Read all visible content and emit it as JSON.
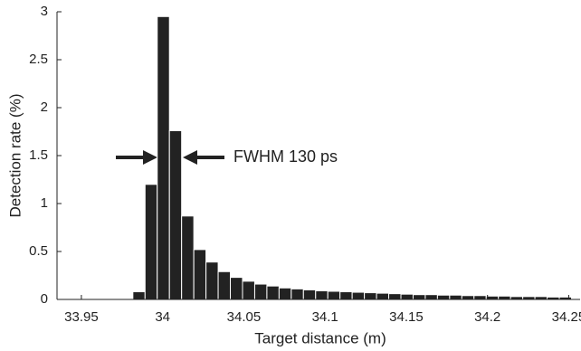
{
  "chart_data": {
    "type": "histogram",
    "x_label": "Target distance (m)",
    "y_label": "Detection rate (%)",
    "annotation": "FWHM 130 ps",
    "bins": [
      33.9667,
      33.9742,
      33.9817,
      33.9892,
      33.9967,
      34.0042,
      34.0117,
      34.0192,
      34.0267,
      34.0342,
      34.0417,
      34.0492,
      34.0567,
      34.0642,
      34.0717,
      34.0792,
      34.0867,
      34.0942,
      34.1017,
      34.1092,
      34.1167,
      34.1242,
      34.1317,
      34.1392,
      34.1467,
      34.1542,
      34.1617,
      34.1692,
      34.1767,
      34.1842,
      34.1917,
      34.1992,
      34.2067,
      34.2142,
      34.2217,
      34.2292,
      34.2367,
      34.2442,
      34.2517
    ],
    "values": [
      0,
      0.005,
      0.08,
      1.2,
      2.95,
      1.76,
      0.87,
      0.52,
      0.39,
      0.29,
      0.23,
      0.19,
      0.16,
      0.14,
      0.12,
      0.11,
      0.1,
      0.09,
      0.085,
      0.08,
      0.075,
      0.07,
      0.065,
      0.06,
      0.055,
      0.05,
      0.05,
      0.045,
      0.045,
      0.04,
      0.04,
      0.035,
      0.035,
      0.03,
      0.03,
      0.03,
      0.025,
      0.025
    ],
    "color": "#222222",
    "xlim": [
      33.935,
      34.257
    ],
    "xticks": [
      33.95,
      34,
      34.05,
      34.1,
      34.15,
      34.2,
      34.25
    ],
    "ylim": [
      0,
      3
    ],
    "yticks": [
      0,
      0.5,
      1,
      1.5,
      2,
      2.5,
      3
    ]
  }
}
